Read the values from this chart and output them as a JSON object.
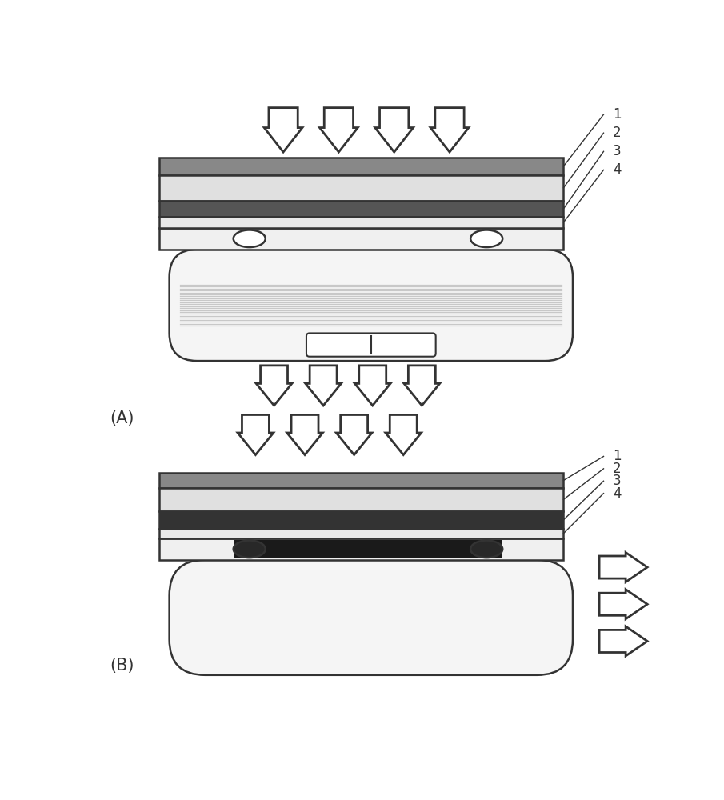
{
  "background_color": "#ffffff",
  "label_A": "(A)",
  "label_B": "(B)",
  "line_color": "#333333",
  "layer1_color": "#888888",
  "layer2_color": "#e0e0e0",
  "layer3_color": "#555555",
  "layer4_color": "#e8e8e8",
  "layer1b_color": "#888888",
  "layer2b_color": "#e0e0e0",
  "layer3b_color": "#333333",
  "layer4b_color": "#e8e8e8",
  "tray_color": "#f0f0f0",
  "ac_body_color": "#f5f5f5",
  "stripe_color": "#c8c8c8",
  "roller_A_color": "#ffffff",
  "roller_B_color": "#282828",
  "dark_fill_color": "#1a1a1a",
  "arrow_fill": "#ffffff",
  "arrow_edge": "#333333"
}
